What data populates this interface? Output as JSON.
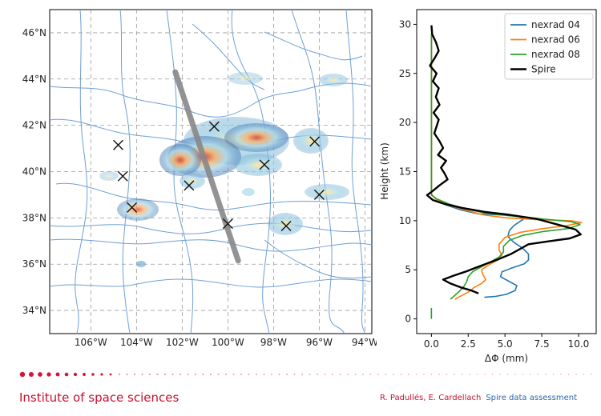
{
  "chart_data": [
    {
      "type": "map",
      "longitude_ticks": [
        "106°W",
        "104°W",
        "102°W",
        "100°W",
        "98°W",
        "96°W",
        "94°W"
      ],
      "latitude_ticks": [
        "46°N",
        "44°N",
        "42°N",
        "40°N",
        "38°N",
        "36°N",
        "34°N"
      ],
      "lon_range": [
        -107.8,
        -93.7
      ],
      "lat_range": [
        33.0,
        47.0
      ],
      "grid": true,
      "radar_sites": [
        {
          "lon": -104.8,
          "lat": 41.15
        },
        {
          "lon": -100.6,
          "lat": 41.95
        },
        {
          "lon": -96.2,
          "lat": 41.3
        },
        {
          "lon": -98.4,
          "lat": 40.3
        },
        {
          "lon": -104.6,
          "lat": 39.8
        },
        {
          "lon": -101.7,
          "lat": 39.4
        },
        {
          "lon": -96.0,
          "lat": 39.0
        },
        {
          "lon": -104.2,
          "lat": 38.45
        },
        {
          "lon": -100.0,
          "lat": 37.75
        },
        {
          "lon": -97.45,
          "lat": 37.65
        }
      ],
      "occultation_track": {
        "start": {
          "lon": -102.3,
          "lat": 44.3
        },
        "end": {
          "lon": -99.55,
          "lat": 36.15
        }
      }
    },
    {
      "type": "line",
      "xlabel": "ΔΦ (mm)",
      "ylabel": "Height (km)",
      "xlim": [
        -1.0,
        11.2
      ],
      "ylim": [
        -1.5,
        31.5
      ],
      "xticks": [
        "0.0",
        "2.5",
        "5.0",
        "7.5",
        "10.0"
      ],
      "yticks": [
        "0",
        "5",
        "10",
        "15",
        "20",
        "25",
        "30"
      ],
      "legend_position": "top-right",
      "series": [
        {
          "name": "nexrad 04",
          "color": "#1f77b4",
          "points": [
            [
              0,
              29
            ],
            [
              0,
              25
            ],
            [
              0,
              20
            ],
            [
              0,
              15
            ],
            [
              0,
              12.7
            ],
            [
              0.3,
              12.2
            ],
            [
              1.0,
              11.6
            ],
            [
              2.0,
              11.1
            ],
            [
              3.2,
              10.7
            ],
            [
              4.5,
              10.6
            ],
            [
              5.8,
              10.5
            ],
            [
              6.3,
              10.2
            ],
            [
              6.0,
              9.9
            ],
            [
              5.6,
              9.5
            ],
            [
              5.3,
              9.0
            ],
            [
              5.2,
              8.4
            ],
            [
              5.6,
              7.8
            ],
            [
              6.2,
              7.2
            ],
            [
              6.6,
              6.6
            ],
            [
              6.6,
              6.0
            ],
            [
              6.3,
              5.6
            ],
            [
              5.5,
              5.2
            ],
            [
              4.8,
              4.8
            ],
            [
              4.7,
              4.3
            ],
            [
              5.3,
              3.8
            ],
            [
              5.8,
              3.4
            ],
            [
              5.7,
              2.9
            ],
            [
              5.1,
              2.5
            ],
            [
              4.4,
              2.3
            ],
            [
              3.6,
              2.2
            ]
          ]
        },
        {
          "name": "nexrad 06",
          "color": "#ff7f0e",
          "points": [
            [
              0,
              29
            ],
            [
              0,
              25
            ],
            [
              0,
              20
            ],
            [
              0,
              15
            ],
            [
              0,
              12.7
            ],
            [
              0.3,
              12.2
            ],
            [
              1.1,
              11.6
            ],
            [
              2.3,
              11.1
            ],
            [
              3.5,
              10.6
            ],
            [
              5.0,
              10.3
            ],
            [
              7.2,
              10.1
            ],
            [
              9.5,
              10.0
            ],
            [
              10.2,
              9.8
            ],
            [
              9.2,
              9.5
            ],
            [
              7.6,
              9.2
            ],
            [
              6.0,
              8.8
            ],
            [
              5.0,
              8.3
            ],
            [
              4.6,
              7.6
            ],
            [
              4.6,
              7.0
            ],
            [
              4.8,
              6.5
            ],
            [
              4.5,
              6.0
            ],
            [
              3.9,
              5.5
            ],
            [
              3.4,
              5.0
            ],
            [
              3.5,
              4.5
            ],
            [
              3.7,
              4.0
            ],
            [
              3.4,
              3.6
            ],
            [
              2.9,
              3.2
            ],
            [
              2.6,
              2.8
            ],
            [
              2.1,
              2.4
            ],
            [
              1.6,
              2.0
            ]
          ]
        },
        {
          "name": "nexrad 08",
          "color": "#2ca02c",
          "points": [
            [
              0,
              29
            ],
            [
              0,
              25
            ],
            [
              0,
              20
            ],
            [
              0,
              15
            ],
            [
              0,
              13
            ],
            [
              0,
              12.6
            ],
            [
              0.4,
              12.2
            ],
            [
              1.2,
              11.7
            ],
            [
              2.3,
              11.2
            ],
            [
              3.6,
              10.8
            ],
            [
              5.3,
              10.5
            ],
            [
              7.4,
              10.2
            ],
            [
              9.5,
              9.9
            ],
            [
              10.1,
              9.6
            ],
            [
              9.3,
              9.2
            ],
            [
              7.6,
              8.9
            ],
            [
              6.2,
              8.5
            ],
            [
              5.3,
              8.0
            ],
            [
              4.9,
              7.4
            ],
            [
              4.9,
              6.8
            ],
            [
              4.6,
              6.3
            ],
            [
              4.0,
              5.8
            ],
            [
              3.4,
              5.3
            ],
            [
              2.8,
              4.8
            ],
            [
              2.5,
              4.3
            ],
            [
              2.4,
              3.8
            ],
            [
              2.2,
              3.3
            ],
            [
              1.9,
              2.8
            ],
            [
              1.6,
              2.4
            ],
            [
              1.3,
              2.0
            ]
          ]
        },
        {
          "name": "Spire",
          "color": "#000000",
          "points": [
            [
              0,
              29.9
            ],
            [
              0.05,
              29.0
            ],
            [
              0.3,
              28.2
            ],
            [
              0.5,
              27.3
            ],
            [
              0.2,
              26.5
            ],
            [
              -0.1,
              25.8
            ],
            [
              0.35,
              25.0
            ],
            [
              0.1,
              24.2
            ],
            [
              0.5,
              23.5
            ],
            [
              0.3,
              22.6
            ],
            [
              0.55,
              21.8
            ],
            [
              0.15,
              21.0
            ],
            [
              0.5,
              20.3
            ],
            [
              0.35,
              19.6
            ],
            [
              0.2,
              18.9
            ],
            [
              0.55,
              18.1
            ],
            [
              0.8,
              17.4
            ],
            [
              0.45,
              16.7
            ],
            [
              1.0,
              16.1
            ],
            [
              0.65,
              15.4
            ],
            [
              0.9,
              14.8
            ],
            [
              1.1,
              14.2
            ],
            [
              0.55,
              13.6
            ],
            [
              0.15,
              13.1
            ],
            [
              -0.3,
              12.6
            ],
            [
              0.1,
              12.1
            ],
            [
              0.9,
              11.7
            ],
            [
              2.1,
              11.3
            ],
            [
              3.6,
              10.9
            ],
            [
              5.3,
              10.6
            ],
            [
              7.1,
              10.2
            ],
            [
              8.6,
              9.6
            ],
            [
              9.8,
              9.1
            ],
            [
              10.15,
              8.6
            ],
            [
              9.4,
              8.2
            ],
            [
              8.0,
              7.9
            ],
            [
              6.6,
              7.6
            ],
            [
              6.0,
              7.1
            ],
            [
              5.4,
              6.6
            ],
            [
              4.6,
              6.1
            ],
            [
              3.7,
              5.6
            ],
            [
              3.0,
              5.2
            ],
            [
              2.3,
              4.8
            ],
            [
              1.5,
              4.4
            ],
            [
              0.8,
              4.0
            ],
            [
              1.3,
              3.6
            ],
            [
              2.0,
              3.2
            ],
            [
              2.7,
              2.9
            ],
            [
              3.2,
              2.6
            ]
          ]
        }
      ]
    }
  ],
  "footer": {
    "institute": "Institute of space sciences",
    "authors": "R. Padullés, E. Cardellach",
    "brand": "Spire data assessment"
  }
}
